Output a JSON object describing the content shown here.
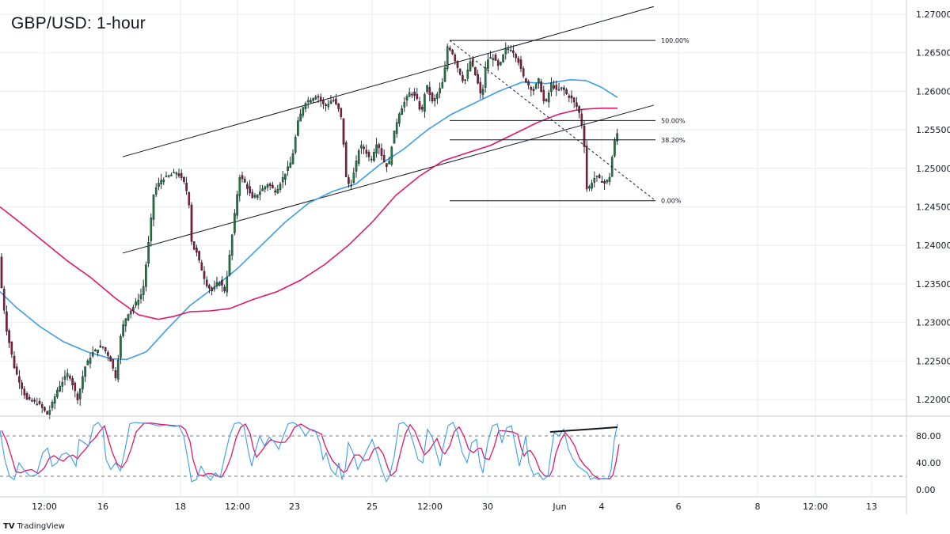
{
  "title": "GBP/USD: 1-hour",
  "brand": {
    "logo": "TV",
    "name": "TradingView"
  },
  "colors": {
    "bull_body": "#1d7d3f",
    "bear_body": "#8e1a3d",
    "wick": "#131722",
    "ma_fast": "#3d9de8",
    "ma_slow": "#e0186c",
    "stoch_k": "#3d9de8",
    "stoch_d": "#e0186c",
    "divergence": "#131722",
    "grid": "#e9edf2",
    "axis_text": "#131722"
  },
  "chart_data": [
    {
      "type": "line",
      "subtype": "candlestick",
      "title": "GBP/USD: 1-hour",
      "ylim": [
        1.2175,
        1.2705
      ],
      "price_ticks": [
        "1.27000",
        "1.26500",
        "1.26000",
        "1.25500",
        "1.25000",
        "1.24500",
        "1.24000",
        "1.23500",
        "1.23000",
        "1.22500",
        "1.22000"
      ],
      "x_ticks": [
        "12:00",
        "16",
        "18",
        "12:00",
        "23",
        "25",
        "12:00",
        "30",
        "Jun",
        "4",
        "6",
        "8",
        "12:00",
        "13"
      ],
      "waypoints": [
        [
          0,
          1.239
        ],
        [
          4,
          1.234
        ],
        [
          10,
          1.229
        ],
        [
          20,
          1.224
        ],
        [
          35,
          1.22
        ],
        [
          50,
          1.2195
        ],
        [
          62,
          1.218
        ],
        [
          75,
          1.2215
        ],
        [
          88,
          1.2235
        ],
        [
          100,
          1.22
        ],
        [
          108,
          1.224
        ],
        [
          118,
          1.226
        ],
        [
          130,
          1.227
        ],
        [
          140,
          1.2255
        ],
        [
          148,
          1.2228
        ],
        [
          155,
          1.229
        ],
        [
          162,
          1.231
        ],
        [
          170,
          1.232
        ],
        [
          182,
          1.234
        ],
        [
          190,
          1.241
        ],
        [
          196,
          1.247
        ],
        [
          205,
          1.2485
        ],
        [
          215,
          1.249
        ],
        [
          225,
          1.2495
        ],
        [
          235,
          1.248
        ],
        [
          240,
          1.246
        ],
        [
          244,
          1.24
        ],
        [
          250,
          1.239
        ],
        [
          256,
          1.237
        ],
        [
          262,
          1.235
        ],
        [
          270,
          1.234
        ],
        [
          278,
          1.2355
        ],
        [
          286,
          1.234
        ],
        [
          292,
          1.239
        ],
        [
          298,
          1.244
        ],
        [
          304,
          1.249
        ],
        [
          312,
          1.248
        ],
        [
          320,
          1.246
        ],
        [
          330,
          1.247
        ],
        [
          340,
          1.248
        ],
        [
          350,
          1.247
        ],
        [
          360,
          1.249
        ],
        [
          370,
          1.251
        ],
        [
          378,
          1.256
        ],
        [
          386,
          1.2585
        ],
        [
          394,
          1.259
        ],
        [
          402,
          1.2595
        ],
        [
          412,
          1.258
        ],
        [
          422,
          1.259
        ],
        [
          430,
          1.2575
        ],
        [
          434,
          1.256
        ],
        [
          438,
          1.249
        ],
        [
          444,
          1.2475
        ],
        [
          450,
          1.25
        ],
        [
          456,
          1.253
        ],
        [
          462,
          1.2525
        ],
        [
          470,
          1.251
        ],
        [
          478,
          1.2535
        ],
        [
          486,
          1.251
        ],
        [
          492,
          1.25
        ],
        [
          498,
          1.254
        ],
        [
          505,
          1.257
        ],
        [
          512,
          1.2585
        ],
        [
          520,
          1.26
        ],
        [
          528,
          1.259
        ],
        [
          534,
          1.257
        ],
        [
          540,
          1.261
        ],
        [
          548,
          1.2585
        ],
        [
          556,
          1.26
        ],
        [
          562,
          1.2615
        ],
        [
          567,
          1.266
        ],
        [
          573,
          1.265
        ],
        [
          580,
          1.263
        ],
        [
          588,
          1.261
        ],
        [
          596,
          1.264
        ],
        [
          604,
          1.2615
        ],
        [
          610,
          1.259
        ],
        [
          616,
          1.264
        ],
        [
          624,
          1.2645
        ],
        [
          632,
          1.263
        ],
        [
          640,
          1.2655
        ],
        [
          648,
          1.2655
        ],
        [
          656,
          1.264
        ],
        [
          662,
          1.262
        ],
        [
          668,
          1.261
        ],
        [
          675,
          1.26
        ],
        [
          682,
          1.2615
        ],
        [
          690,
          1.258
        ],
        [
          698,
          1.261
        ],
        [
          705,
          1.26
        ],
        [
          712,
          1.2605
        ],
        [
          718,
          1.2595
        ],
        [
          724,
          1.259
        ],
        [
          730,
          1.258
        ],
        [
          734,
          1.257
        ],
        [
          736,
          1.256
        ],
        [
          739,
          1.254
        ],
        [
          743,
          1.247
        ],
        [
          748,
          1.248
        ],
        [
          754,
          1.249
        ],
        [
          760,
          1.2485
        ],
        [
          766,
          1.248
        ],
        [
          772,
          1.249
        ],
        [
          776,
          1.2525
        ],
        [
          780,
          1.2545
        ]
      ],
      "series": [
        {
          "role": "moving-average-fast",
          "points": [
            [
              0,
              1.234
            ],
            [
              20,
              1.232
            ],
            [
              50,
              1.2295
            ],
            [
              80,
              1.2275
            ],
            [
              110,
              1.2262
            ],
            [
              140,
              1.2253
            ],
            [
              160,
              1.2252
            ],
            [
              185,
              1.2262
            ],
            [
              210,
              1.229
            ],
            [
              240,
              1.2322
            ],
            [
              270,
              1.2345
            ],
            [
              300,
              1.237
            ],
            [
              330,
              1.24
            ],
            [
              360,
              1.243
            ],
            [
              390,
              1.2455
            ],
            [
              420,
              1.247
            ],
            [
              450,
              1.248
            ],
            [
              480,
              1.2505
            ],
            [
              510,
              1.2525
            ],
            [
              540,
              1.255
            ],
            [
              570,
              1.257
            ],
            [
              600,
              1.2585
            ],
            [
              630,
              1.26
            ],
            [
              660,
              1.2612
            ],
            [
              690,
              1.261
            ],
            [
              720,
              1.2615
            ],
            [
              740,
              1.2614
            ],
            [
              760,
              1.2605
            ],
            [
              780,
              1.2592
            ]
          ]
        },
        {
          "role": "moving-average-slow",
          "points": [
            [
              0,
              1.245
            ],
            [
              25,
              1.243
            ],
            [
              55,
              1.2405
            ],
            [
              85,
              1.238
            ],
            [
              115,
              1.2358
            ],
            [
              145,
              1.2332
            ],
            [
              175,
              1.231
            ],
            [
              200,
              1.2304
            ],
            [
              220,
              1.2308
            ],
            [
              240,
              1.2314
            ],
            [
              265,
              1.2315
            ],
            [
              290,
              1.2318
            ],
            [
              320,
              1.233
            ],
            [
              350,
              1.234
            ],
            [
              380,
              1.2355
            ],
            [
              410,
              1.2375
            ],
            [
              440,
              1.24
            ],
            [
              470,
              1.243
            ],
            [
              500,
              1.2465
            ],
            [
              530,
              1.249
            ],
            [
              560,
              1.251
            ],
            [
              590,
              1.252
            ],
            [
              620,
              1.253
            ],
            [
              650,
              1.2545
            ],
            [
              680,
              1.256
            ],
            [
              705,
              1.257
            ],
            [
              725,
              1.2575
            ],
            [
              740,
              1.2577
            ],
            [
              760,
              1.2578
            ],
            [
              780,
              1.2578
            ]
          ]
        }
      ],
      "channel": {
        "upper": [
          [
            155,
            1.2515
          ],
          [
            826,
            1.271
          ]
        ],
        "lower": [
          [
            155,
            1.239
          ],
          [
            826,
            1.2582
          ]
        ]
      },
      "fib_levels": [
        {
          "label": "100.00%",
          "price": 1.2666
        },
        {
          "label": "50.00%",
          "price": 1.2562
        },
        {
          "label": "38.20%",
          "price": 1.2537
        },
        {
          "label": "0.00%",
          "price": 1.2458
        }
      ],
      "fib_x": [
        568,
        828
      ],
      "fib_diagonal": [
        [
          568,
          1.2666
        ],
        [
          828,
          1.2458
        ]
      ]
    },
    {
      "type": "line",
      "subtype": "stochastic",
      "ylim": [
        -10,
        110
      ],
      "y_ticks": [
        "80.00",
        "40.00",
        "0.00"
      ],
      "levels": [
        80,
        20
      ],
      "k_points": [
        [
          0,
          88
        ],
        [
          6,
          45
        ],
        [
          12,
          20
        ],
        [
          18,
          15
        ],
        [
          24,
          40
        ],
        [
          30,
          30
        ],
        [
          38,
          20
        ],
        [
          46,
          22
        ],
        [
          54,
          55
        ],
        [
          60,
          62
        ],
        [
          66,
          35
        ],
        [
          72,
          40
        ],
        [
          78,
          52
        ],
        [
          84,
          55
        ],
        [
          90,
          48
        ],
        [
          96,
          35
        ],
        [
          100,
          75
        ],
        [
          106,
          70
        ],
        [
          112,
          65
        ],
        [
          118,
          95
        ],
        [
          124,
          100
        ],
        [
          130,
          90
        ],
        [
          134,
          45
        ],
        [
          140,
          30
        ],
        [
          146,
          40
        ],
        [
          152,
          28
        ],
        [
          158,
          60
        ],
        [
          164,
          98
        ],
        [
          170,
          100
        ],
        [
          180,
          99
        ],
        [
          190,
          98
        ],
        [
          200,
          95
        ],
        [
          210,
          96
        ],
        [
          220,
          94
        ],
        [
          226,
          95
        ],
        [
          232,
          80
        ],
        [
          238,
          40
        ],
        [
          242,
          12
        ],
        [
          248,
          15
        ],
        [
          254,
          35
        ],
        [
          260,
          22
        ],
        [
          266,
          14
        ],
        [
          272,
          25
        ],
        [
          278,
          18
        ],
        [
          284,
          50
        ],
        [
          290,
          80
        ],
        [
          296,
          98
        ],
        [
          302,
          100
        ],
        [
          308,
          95
        ],
        [
          314,
          55
        ],
        [
          318,
          35
        ],
        [
          322,
          55
        ],
        [
          328,
          80
        ],
        [
          334,
          65
        ],
        [
          340,
          78
        ],
        [
          346,
          72
        ],
        [
          352,
          60
        ],
        [
          358,
          80
        ],
        [
          364,
          98
        ],
        [
          370,
          100
        ],
        [
          378,
          95
        ],
        [
          386,
          80
        ],
        [
          392,
          90
        ],
        [
          398,
          88
        ],
        [
          404,
          70
        ],
        [
          408,
          45
        ],
        [
          412,
          55
        ],
        [
          418,
          30
        ],
        [
          424,
          22
        ],
        [
          428,
          40
        ],
        [
          432,
          15
        ],
        [
          436,
          30
        ],
        [
          440,
          70
        ],
        [
          446,
          55
        ],
        [
          452,
          30
        ],
        [
          458,
          45
        ],
        [
          464,
          60
        ],
        [
          470,
          75
        ],
        [
          476,
          55
        ],
        [
          482,
          30
        ],
        [
          488,
          12
        ],
        [
          492,
          20
        ],
        [
          498,
          50
        ],
        [
          504,
          98
        ],
        [
          510,
          100
        ],
        [
          516,
          92
        ],
        [
          522,
          70
        ],
        [
          528,
          45
        ],
        [
          534,
          40
        ],
        [
          540,
          90
        ],
        [
          546,
          78
        ],
        [
          550,
          60
        ],
        [
          556,
          35
        ],
        [
          560,
          65
        ],
        [
          566,
          95
        ],
        [
          572,
          100
        ],
        [
          578,
          85
        ],
        [
          584,
          55
        ],
        [
          590,
          40
        ],
        [
          596,
          70
        ],
        [
          602,
          75
        ],
        [
          606,
          40
        ],
        [
          610,
          25
        ],
        [
          616,
          70
        ],
        [
          622,
          95
        ],
        [
          628,
          98
        ],
        [
          634,
          70
        ],
        [
          640,
          92
        ],
        [
          646,
          95
        ],
        [
          652,
          60
        ],
        [
          656,
          35
        ],
        [
          660,
          55
        ],
        [
          664,
          80
        ],
        [
          668,
          40
        ],
        [
          674,
          22
        ],
        [
          680,
          25
        ],
        [
          686,
          15
        ],
        [
          692,
          20
        ],
        [
          696,
          55
        ],
        [
          700,
          85
        ],
        [
          706,
          80
        ],
        [
          712,
          90
        ],
        [
          718,
          60
        ],
        [
          724,
          45
        ],
        [
          730,
          35
        ],
        [
          736,
          30
        ],
        [
          742,
          25
        ],
        [
          746,
          15
        ],
        [
          750,
          18
        ],
        [
          756,
          15
        ],
        [
          762,
          17
        ],
        [
          768,
          16
        ],
        [
          772,
          30
        ],
        [
          776,
          75
        ],
        [
          780,
          98
        ]
      ]
    }
  ]
}
